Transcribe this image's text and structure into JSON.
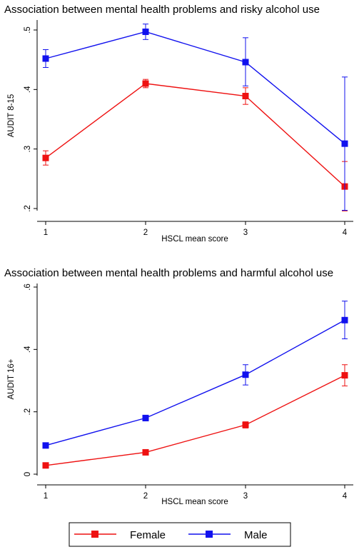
{
  "chart_data": [
    {
      "type": "line",
      "title": "Association between mental health problems and risky alcohol use",
      "xlabel": "HSCL mean score",
      "ylabel": "AUDIT 8-15",
      "x": [
        1,
        2,
        3,
        4
      ],
      "x_tick_labels": [
        "1",
        "2",
        "3",
        "4"
      ],
      "y_ticks": [
        0.2,
        0.3,
        0.4,
        0.5
      ],
      "y_tick_labels": [
        ".2",
        ".3",
        ".4",
        ".5"
      ],
      "ylim": [
        0.195,
        0.51
      ],
      "grid": false,
      "series": [
        {
          "name": "Female",
          "color": "#ee1111",
          "values": [
            0.285,
            0.41,
            0.389,
            0.237
          ],
          "ci_low": [
            0.273,
            0.403,
            0.375,
            0.196
          ],
          "ci_high": [
            0.297,
            0.417,
            0.403,
            0.279
          ]
        },
        {
          "name": "Male",
          "color": "#1111ee",
          "values": [
            0.452,
            0.497,
            0.446,
            0.309
          ],
          "ci_low": [
            0.437,
            0.484,
            0.406,
            0.197
          ],
          "ci_high": [
            0.467,
            0.51,
            0.487,
            0.421
          ]
        }
      ]
    },
    {
      "type": "line",
      "title": "Association between mental health problems and harmful alcohol use",
      "xlabel": "HSCL mean score",
      "ylabel": "AUDIT 16+",
      "x": [
        1,
        2,
        3,
        4
      ],
      "x_tick_labels": [
        "1",
        "2",
        "3",
        "4"
      ],
      "y_ticks": [
        0,
        0.2,
        0.4,
        0.6
      ],
      "y_tick_labels": [
        "0",
        ".2",
        ".4",
        ".6"
      ],
      "ylim": [
        0,
        0.6
      ],
      "grid": false,
      "series": [
        {
          "name": "Female",
          "color": "#ee1111",
          "values": [
            0.028,
            0.07,
            0.158,
            0.317
          ],
          "ci_low": [
            0.024,
            0.064,
            0.148,
            0.283
          ],
          "ci_high": [
            0.032,
            0.076,
            0.168,
            0.351
          ]
        },
        {
          "name": "Male",
          "color": "#1111ee",
          "values": [
            0.092,
            0.18,
            0.319,
            0.494
          ],
          "ci_low": [
            0.086,
            0.171,
            0.286,
            0.434
          ],
          "ci_high": [
            0.098,
            0.189,
            0.351,
            0.555
          ]
        }
      ]
    }
  ],
  "legend": {
    "placement": "bottom",
    "items": [
      {
        "label": "Female",
        "color": "#ee1111",
        "marker": "square"
      },
      {
        "label": "Male",
        "color": "#1111ee",
        "marker": "square"
      }
    ]
  }
}
